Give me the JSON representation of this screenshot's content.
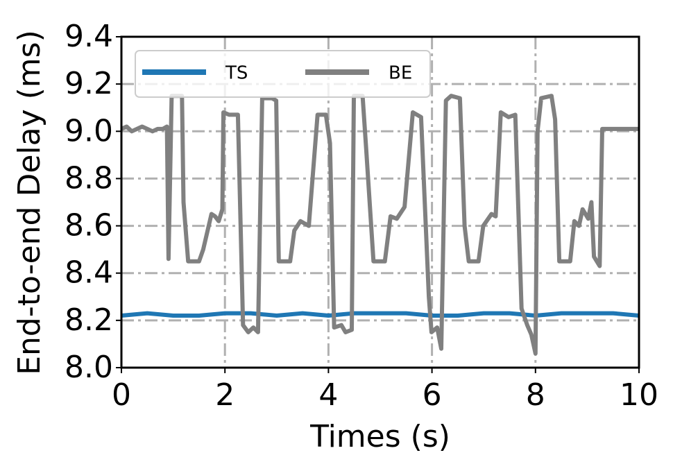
{
  "chart_data": {
    "type": "line",
    "x_label": "Times (s)",
    "y_label": "End-to-end Delay (ms)",
    "xlim": [
      0,
      10
    ],
    "xticks": [
      0,
      2,
      4,
      6,
      8,
      10
    ],
    "ylim": [
      8.0,
      9.4
    ],
    "yticks": [
      {
        "value": 8.0,
        "label": "8.0"
      },
      8.2,
      8.4,
      8.6,
      8.8,
      {
        "value": 9.0,
        "label": "9.0"
      },
      9.2,
      9.4
    ],
    "grid": true,
    "legend": "upper left",
    "series": [
      {
        "name": "TS",
        "color": "#1f77b4",
        "x": [
          0,
          0.5,
          1,
          1.5,
          2,
          2.5,
          3,
          3.5,
          4,
          4.5,
          5,
          5.5,
          6,
          6.5,
          7,
          7.5,
          8,
          8.5,
          9,
          9.5,
          10
        ],
        "values": [
          8.22,
          8.23,
          8.22,
          8.22,
          8.23,
          8.23,
          8.22,
          8.23,
          8.22,
          8.23,
          8.23,
          8.23,
          8.22,
          8.22,
          8.23,
          8.23,
          8.22,
          8.23,
          8.23,
          8.23,
          8.22
        ]
      },
      {
        "name": "BE",
        "color": "#808080",
        "x": [
          0,
          0.1,
          0.2,
          0.3,
          0.4,
          0.5,
          0.6,
          0.7,
          0.8,
          0.88,
          0.91,
          0.97,
          1.17,
          1.2,
          1.29,
          1.5,
          1.58,
          1.74,
          1.81,
          1.88,
          1.95,
          1.97,
          2.08,
          2.25,
          2.35,
          2.45,
          2.55,
          2.64,
          2.72,
          2.91,
          2.99,
          3.04,
          3.26,
          3.34,
          3.46,
          3.62,
          3.79,
          3.95,
          4.03,
          4.11,
          4.25,
          4.33,
          4.45,
          4.49,
          4.66,
          4.73,
          4.87,
          5.09,
          5.2,
          5.32,
          5.47,
          5.63,
          5.79,
          5.94,
          5.99,
          6.1,
          6.18,
          6.27,
          6.37,
          6.54,
          6.63,
          6.71,
          6.9,
          6.99,
          7.15,
          7.23,
          7.33,
          7.48,
          7.61,
          7.73,
          7.84,
          7.92,
          8.0,
          8.04,
          8.11,
          8.31,
          8.38,
          8.46,
          8.67,
          8.75,
          8.84,
          8.91,
          9.02,
          9.08,
          9.13,
          9.24,
          9.29,
          9.45,
          9.7,
          10
        ],
        "values": [
          9.01,
          9.02,
          9.0,
          9.01,
          9.02,
          9.01,
          9.0,
          9.01,
          9.01,
          9.02,
          8.46,
          9.15,
          9.15,
          8.7,
          8.45,
          8.45,
          8.5,
          8.65,
          8.64,
          8.62,
          8.67,
          9.08,
          9.07,
          9.07,
          8.18,
          8.15,
          8.17,
          8.15,
          9.14,
          9.14,
          9.13,
          8.45,
          8.45,
          8.58,
          8.62,
          8.6,
          9.07,
          9.07,
          8.95,
          8.17,
          8.18,
          8.15,
          8.16,
          9.15,
          9.15,
          8.92,
          8.45,
          8.45,
          8.64,
          8.63,
          8.68,
          9.08,
          9.06,
          8.3,
          8.15,
          8.17,
          8.08,
          9.13,
          9.15,
          9.14,
          8.6,
          8.45,
          8.45,
          8.6,
          8.65,
          8.64,
          9.08,
          9.06,
          9.07,
          8.25,
          8.18,
          8.14,
          8.06,
          9.0,
          9.14,
          9.15,
          9.05,
          8.45,
          8.45,
          8.62,
          8.6,
          8.67,
          8.63,
          8.7,
          8.47,
          8.43,
          9.01,
          9.01,
          9.01,
          9.01
        ]
      }
    ]
  }
}
